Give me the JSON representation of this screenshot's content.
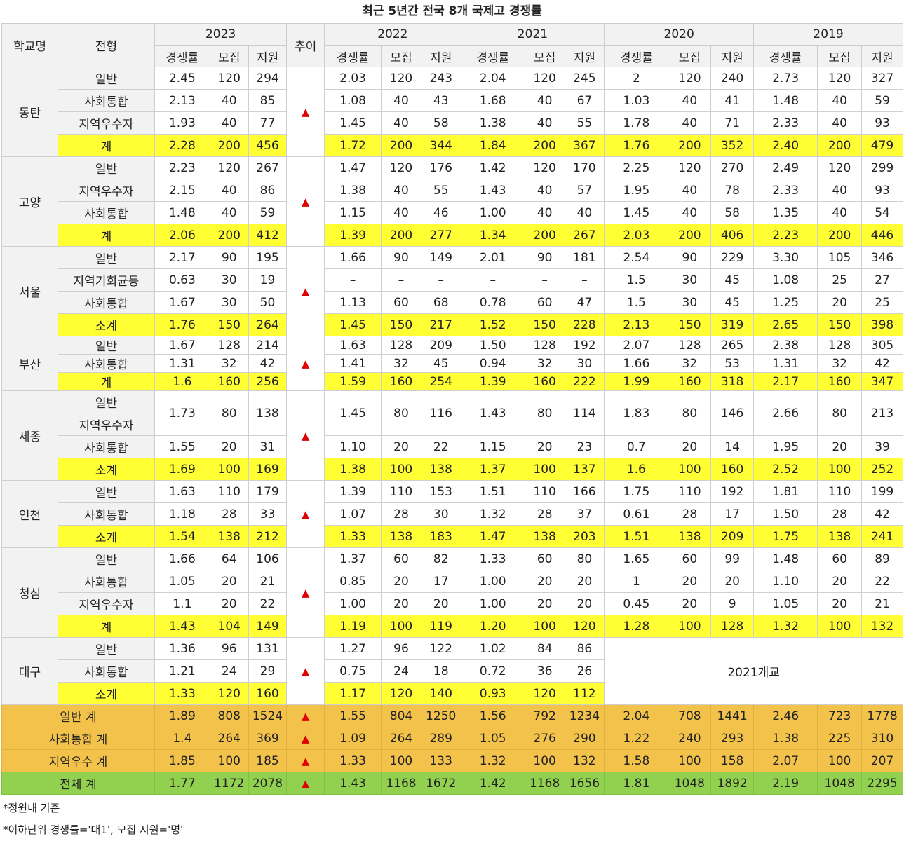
{
  "title": "최근 5년간 전국 8개 국제고 경쟁률",
  "header": {
    "school": "학교명",
    "type": "전형",
    "trend": "추이",
    "years": [
      "2023",
      "2022",
      "2021",
      "2020",
      "2019"
    ],
    "sub": [
      "경쟁률",
      "모집",
      "지원"
    ]
  },
  "trend_symbol": "▲",
  "colors": {
    "subtotal": "#ffff33",
    "category_total": "#f3c24a",
    "grand_total": "#92d050",
    "trend": "#e00000"
  },
  "schools": [
    {
      "name": "동탄",
      "rows": [
        {
          "label": "일반",
          "y2023": [
            "2.45",
            "120",
            "294"
          ],
          "y2022": [
            "2.03",
            "120",
            "243"
          ],
          "y2021": [
            "2.04",
            "120",
            "245"
          ],
          "y2020": [
            "2",
            "120",
            "240"
          ],
          "y2019": [
            "2.73",
            "120",
            "327"
          ]
        },
        {
          "label": "사회통합",
          "y2023": [
            "2.13",
            "40",
            "85"
          ],
          "y2022": [
            "1.08",
            "40",
            "43"
          ],
          "y2021": [
            "1.68",
            "40",
            "67"
          ],
          "y2020": [
            "1.03",
            "40",
            "41"
          ],
          "y2019": [
            "1.48",
            "40",
            "59"
          ]
        },
        {
          "label": "지역우수자",
          "y2023": [
            "1.93",
            "40",
            "77"
          ],
          "y2022": [
            "1.45",
            "40",
            "58"
          ],
          "y2021": [
            "1.38",
            "40",
            "55"
          ],
          "y2020": [
            "1.78",
            "40",
            "71"
          ],
          "y2019": [
            "2.33",
            "40",
            "93"
          ]
        },
        {
          "label": "계",
          "y2023": [
            "2.28",
            "200",
            "456"
          ],
          "y2022": [
            "1.72",
            "200",
            "344"
          ],
          "y2021": [
            "1.84",
            "200",
            "367"
          ],
          "y2020": [
            "1.76",
            "200",
            "352"
          ],
          "y2019": [
            "2.40",
            "200",
            "479"
          ]
        }
      ]
    },
    {
      "name": "고양",
      "rows": [
        {
          "label": "일반",
          "y2023": [
            "2.23",
            "120",
            "267"
          ],
          "y2022": [
            "1.47",
            "120",
            "176"
          ],
          "y2021": [
            "1.42",
            "120",
            "170"
          ],
          "y2020": [
            "2.25",
            "120",
            "270"
          ],
          "y2019": [
            "2.49",
            "120",
            "299"
          ]
        },
        {
          "label": "지역우수자",
          "y2023": [
            "2.15",
            "40",
            "86"
          ],
          "y2022": [
            "1.38",
            "40",
            "55"
          ],
          "y2021": [
            "1.43",
            "40",
            "57"
          ],
          "y2020": [
            "1.95",
            "40",
            "78"
          ],
          "y2019": [
            "2.33",
            "40",
            "93"
          ]
        },
        {
          "label": "사회통합",
          "y2023": [
            "1.48",
            "40",
            "59"
          ],
          "y2022": [
            "1.15",
            "40",
            "46"
          ],
          "y2021": [
            "1.00",
            "40",
            "40"
          ],
          "y2020": [
            "1.45",
            "40",
            "58"
          ],
          "y2019": [
            "1.35",
            "40",
            "54"
          ]
        },
        {
          "label": "계",
          "y2023": [
            "2.06",
            "200",
            "412"
          ],
          "y2022": [
            "1.39",
            "200",
            "277"
          ],
          "y2021": [
            "1.34",
            "200",
            "267"
          ],
          "y2020": [
            "2.03",
            "200",
            "406"
          ],
          "y2019": [
            "2.23",
            "200",
            "446"
          ]
        }
      ]
    },
    {
      "name": "서울",
      "rows": [
        {
          "label": "일반",
          "y2023": [
            "2.17",
            "90",
            "195"
          ],
          "y2022": [
            "1.66",
            "90",
            "149"
          ],
          "y2021": [
            "2.01",
            "90",
            "181"
          ],
          "y2020": [
            "2.54",
            "90",
            "229"
          ],
          "y2019": [
            "3.30",
            "105",
            "346"
          ]
        },
        {
          "label": "지역기회균등",
          "y2023": [
            "0.63",
            "30",
            "19"
          ],
          "y2022": [
            "–",
            "–",
            "–"
          ],
          "y2021": [
            "–",
            "–",
            "–"
          ],
          "y2020": [
            "1.5",
            "30",
            "45"
          ],
          "y2019": [
            "1.08",
            "25",
            "27"
          ]
        },
        {
          "label": "사회통합",
          "y2023": [
            "1.67",
            "30",
            "50"
          ],
          "y2022": [
            "1.13",
            "60",
            "68"
          ],
          "y2021": [
            "0.78",
            "60",
            "47"
          ],
          "y2020": [
            "1.5",
            "30",
            "45"
          ],
          "y2019": [
            "1.25",
            "20",
            "25"
          ]
        },
        {
          "label": "소계",
          "y2023": [
            "1.76",
            "150",
            "264"
          ],
          "y2022": [
            "1.45",
            "150",
            "217"
          ],
          "y2021": [
            "1.52",
            "150",
            "228"
          ],
          "y2020": [
            "2.13",
            "150",
            "319"
          ],
          "y2019": [
            "2.65",
            "150",
            "398"
          ]
        }
      ]
    },
    {
      "name": "부산",
      "rows": [
        {
          "label": "일반",
          "y2023": [
            "1.67",
            "128",
            "214"
          ],
          "y2022": [
            "1.63",
            "128",
            "209"
          ],
          "y2021": [
            "1.50",
            "128",
            "192"
          ],
          "y2020": [
            "2.07",
            "128",
            "265"
          ],
          "y2019": [
            "2.38",
            "128",
            "305"
          ]
        },
        {
          "label": "사회통합",
          "y2023": [
            "1.31",
            "32",
            "42"
          ],
          "y2022": [
            "1.41",
            "32",
            "45"
          ],
          "y2021": [
            "0.94",
            "32",
            "30"
          ],
          "y2020": [
            "1.66",
            "32",
            "53"
          ],
          "y2019": [
            "1.31",
            "32",
            "42"
          ]
        },
        {
          "label": "계",
          "y2023": [
            "1.6",
            "160",
            "256"
          ],
          "y2022": [
            "1.59",
            "160",
            "254"
          ],
          "y2021": [
            "1.39",
            "160",
            "222"
          ],
          "y2020": [
            "1.99",
            "160",
            "318"
          ],
          "y2019": [
            "2.17",
            "160",
            "347"
          ]
        }
      ]
    },
    {
      "name": "세종",
      "rows": [
        {
          "label": "일반"
        },
        {
          "label": "지역우수자"
        },
        {
          "label": "사회통합",
          "y2023": [
            "1.55",
            "20",
            "31"
          ],
          "y2022": [
            "1.10",
            "20",
            "22"
          ],
          "y2021": [
            "1.15",
            "20",
            "23"
          ],
          "y2020": [
            "0.7",
            "20",
            "14"
          ],
          "y2019": [
            "1.95",
            "20",
            "39"
          ]
        },
        {
          "label": "소계",
          "y2023": [
            "1.69",
            "100",
            "169"
          ],
          "y2022": [
            "1.38",
            "100",
            "138"
          ],
          "y2021": [
            "1.37",
            "100",
            "137"
          ],
          "y2020": [
            "1.6",
            "100",
            "160"
          ],
          "y2019": [
            "2.52",
            "100",
            "252"
          ]
        }
      ],
      "merged": {
        "y2023": [
          "1.73",
          "80",
          "138"
        ],
        "y2022": [
          "1.45",
          "80",
          "116"
        ],
        "y2021": [
          "1.43",
          "80",
          "114"
        ],
        "y2020": [
          "1.83",
          "80",
          "146"
        ],
        "y2019": [
          "2.66",
          "80",
          "213"
        ]
      }
    },
    {
      "name": "인천",
      "rows": [
        {
          "label": "일반",
          "y2023": [
            "1.63",
            "110",
            "179"
          ],
          "y2022": [
            "1.39",
            "110",
            "153"
          ],
          "y2021": [
            "1.51",
            "110",
            "166"
          ],
          "y2020": [
            "1.75",
            "110",
            "192"
          ],
          "y2019": [
            "1.81",
            "110",
            "199"
          ]
        },
        {
          "label": "사회통합",
          "y2023": [
            "1.18",
            "28",
            "33"
          ],
          "y2022": [
            "1.07",
            "28",
            "30"
          ],
          "y2021": [
            "1.32",
            "28",
            "37"
          ],
          "y2020": [
            "0.61",
            "28",
            "17"
          ],
          "y2019": [
            "1.50",
            "28",
            "42"
          ]
        },
        {
          "label": "소계",
          "y2023": [
            "1.54",
            "138",
            "212"
          ],
          "y2022": [
            "1.33",
            "138",
            "183"
          ],
          "y2021": [
            "1.47",
            "138",
            "203"
          ],
          "y2020": [
            "1.51",
            "138",
            "209"
          ],
          "y2019": [
            "1.75",
            "138",
            "241"
          ]
        }
      ]
    },
    {
      "name": "청심",
      "rows": [
        {
          "label": "일반",
          "y2023": [
            "1.66",
            "64",
            "106"
          ],
          "y2022": [
            "1.37",
            "60",
            "82"
          ],
          "y2021": [
            "1.33",
            "60",
            "80"
          ],
          "y2020": [
            "1.65",
            "60",
            "99"
          ],
          "y2019": [
            "1.48",
            "60",
            "89"
          ]
        },
        {
          "label": "사회통합",
          "y2023": [
            "1.05",
            "20",
            "21"
          ],
          "y2022": [
            "0.85",
            "20",
            "17"
          ],
          "y2021": [
            "1.00",
            "20",
            "20"
          ],
          "y2020": [
            "1",
            "20",
            "20"
          ],
          "y2019": [
            "1.10",
            "20",
            "22"
          ]
        },
        {
          "label": "지역우수자",
          "y2023": [
            "1.1",
            "20",
            "22"
          ],
          "y2022": [
            "1.00",
            "20",
            "20"
          ],
          "y2021": [
            "1.00",
            "20",
            "20"
          ],
          "y2020": [
            "0.45",
            "20",
            "9"
          ],
          "y2019": [
            "1.05",
            "20",
            "21"
          ]
        },
        {
          "label": "계",
          "y2023": [
            "1.43",
            "104",
            "149"
          ],
          "y2022": [
            "1.19",
            "100",
            "119"
          ],
          "y2021": [
            "1.20",
            "100",
            "120"
          ],
          "y2020": [
            "1.28",
            "100",
            "128"
          ],
          "y2019": [
            "1.32",
            "100",
            "132"
          ]
        }
      ]
    },
    {
      "name": "대구",
      "note": "2021개교",
      "rows": [
        {
          "label": "일반",
          "y2023": [
            "1.36",
            "96",
            "131"
          ],
          "y2022": [
            "1.27",
            "96",
            "122"
          ],
          "y2021": [
            "1.02",
            "84",
            "86"
          ]
        },
        {
          "label": "사회통합",
          "y2023": [
            "1.21",
            "24",
            "29"
          ],
          "y2022": [
            "0.75",
            "24",
            "18"
          ],
          "y2021": [
            "0.72",
            "36",
            "26"
          ]
        },
        {
          "label": "소계",
          "y2023": [
            "1.33",
            "120",
            "160"
          ],
          "y2022": [
            "1.17",
            "120",
            "140"
          ],
          "y2021": [
            "0.93",
            "120",
            "112"
          ]
        }
      ]
    }
  ],
  "totals": [
    {
      "label": "일반 계",
      "y2023": [
        "1.89",
        "808",
        "1524"
      ],
      "y2022": [
        "1.55",
        "804",
        "1250"
      ],
      "y2021": [
        "1.56",
        "792",
        "1234"
      ],
      "y2020": [
        "2.04",
        "708",
        "1441"
      ],
      "y2019": [
        "2.46",
        "723",
        "1778"
      ]
    },
    {
      "label": "사회통합 계",
      "y2023": [
        "1.4",
        "264",
        "369"
      ],
      "y2022": [
        "1.09",
        "264",
        "289"
      ],
      "y2021": [
        "1.05",
        "276",
        "290"
      ],
      "y2020": [
        "1.22",
        "240",
        "293"
      ],
      "y2019": [
        "1.38",
        "225",
        "310"
      ]
    },
    {
      "label": "지역우수 계",
      "y2023": [
        "1.85",
        "100",
        "185"
      ],
      "y2022": [
        "1.33",
        "100",
        "133"
      ],
      "y2021": [
        "1.32",
        "100",
        "132"
      ],
      "y2020": [
        "1.58",
        "100",
        "158"
      ],
      "y2019": [
        "2.07",
        "100",
        "207"
      ]
    }
  ],
  "grand_total": {
    "label": "전체 계",
    "y2023": [
      "1.77",
      "1172",
      "2078"
    ],
    "y2022": [
      "1.43",
      "1168",
      "1672"
    ],
    "y2021": [
      "1.42",
      "1168",
      "1656"
    ],
    "y2020": [
      "1.81",
      "1048",
      "1892"
    ],
    "y2019": [
      "2.19",
      "1048",
      "2295"
    ]
  },
  "notes": [
    "*정원내 기준",
    "*이하단위 경쟁률='대1',  모집 지원='명'"
  ]
}
